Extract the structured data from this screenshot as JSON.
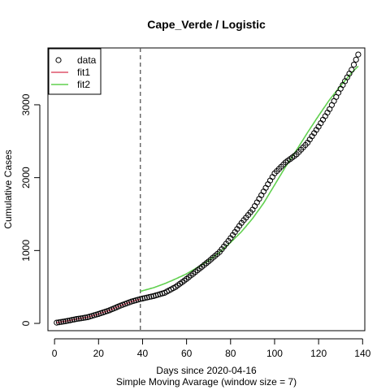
{
  "chart_data": {
    "type": "scatter",
    "title": "Cape_Verde / Logistic",
    "xlabel": "Days since 2020-04-16",
    "xlabel2": "Simple Moving Avarage (window size = 7)",
    "ylabel": "Cumulative Cases",
    "xlim": [
      -3,
      141
    ],
    "ylim": [
      -100,
      3780
    ],
    "xticks": [
      0,
      20,
      40,
      60,
      80,
      100,
      120,
      140
    ],
    "yticks": [
      0,
      1000,
      2000,
      3000
    ],
    "vline_x": 39,
    "legend": {
      "position": "top-left",
      "entries": [
        {
          "label": "data",
          "kind": "point",
          "color": "#000000"
        },
        {
          "label": "fit1",
          "kind": "line",
          "color": "#DF536B"
        },
        {
          "label": "fit2",
          "kind": "line",
          "color": "#61D04F"
        }
      ]
    },
    "series": [
      {
        "name": "data",
        "style": "open-circle",
        "color": "#000000",
        "anchors": [
          [
            1,
            10
          ],
          [
            5,
            30
          ],
          [
            10,
            60
          ],
          [
            15,
            85
          ],
          [
            20,
            130
          ],
          [
            25,
            180
          ],
          [
            30,
            245
          ],
          [
            35,
            300
          ],
          [
            39,
            335
          ],
          [
            45,
            375
          ],
          [
            50,
            420
          ],
          [
            55,
            500
          ],
          [
            60,
            610
          ],
          [
            65,
            730
          ],
          [
            70,
            850
          ],
          [
            75,
            980
          ],
          [
            80,
            1170
          ],
          [
            85,
            1380
          ],
          [
            90,
            1560
          ],
          [
            95,
            1810
          ],
          [
            100,
            2060
          ],
          [
            105,
            2210
          ],
          [
            110,
            2320
          ],
          [
            115,
            2480
          ],
          [
            120,
            2700
          ],
          [
            125,
            2940
          ],
          [
            130,
            3220
          ],
          [
            135,
            3480
          ],
          [
            138,
            3690
          ]
        ]
      },
      {
        "name": "fit1",
        "style": "line",
        "color": "#DF536B",
        "anchors": [
          [
            1,
            10
          ],
          [
            5,
            30
          ],
          [
            10,
            60
          ],
          [
            15,
            85
          ],
          [
            20,
            130
          ],
          [
            25,
            180
          ],
          [
            30,
            245
          ],
          [
            35,
            300
          ],
          [
            39,
            335
          ]
        ]
      },
      {
        "name": "fit2",
        "style": "line",
        "color": "#61D04F",
        "anchors": [
          [
            39,
            440
          ],
          [
            45,
            490
          ],
          [
            50,
            545
          ],
          [
            55,
            610
          ],
          [
            60,
            680
          ],
          [
            65,
            770
          ],
          [
            70,
            860
          ],
          [
            75,
            975
          ],
          [
            80,
            1110
          ],
          [
            85,
            1260
          ],
          [
            90,
            1440
          ],
          [
            95,
            1650
          ],
          [
            100,
            1900
          ],
          [
            105,
            2150
          ],
          [
            110,
            2380
          ],
          [
            115,
            2620
          ],
          [
            120,
            2850
          ],
          [
            125,
            3070
          ],
          [
            130,
            3260
          ],
          [
            135,
            3440
          ],
          [
            138,
            3530
          ]
        ]
      }
    ]
  }
}
